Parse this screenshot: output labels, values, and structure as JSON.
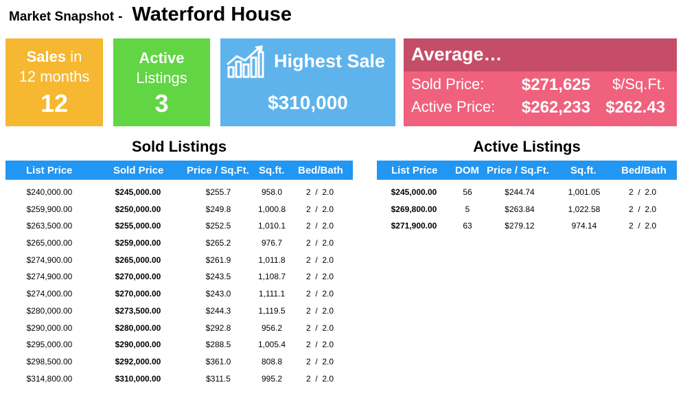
{
  "header": {
    "label": "Market Snapshot",
    "separator": "-",
    "property": "Waterford House"
  },
  "cards": {
    "sales": {
      "word": "Sales",
      "suffix": "in",
      "sub": "12 months",
      "value": "12"
    },
    "active": {
      "word": "Active",
      "sub": "Listings",
      "value": "3"
    },
    "highest": {
      "title": "Highest Sale",
      "value": "$310,000",
      "icon": "chart-growth-icon"
    },
    "average": {
      "title": "Average…",
      "sold_label": "Sold Price:",
      "sold_value": "$271,625",
      "unit_label": "$/Sq.Ft.",
      "active_label": "Active Price:",
      "active_value": "$262,233",
      "active_ppsf": "$262.43"
    }
  },
  "colors": {
    "sales": "#f6b731",
    "active": "#62d544",
    "highest": "#5fb3ec",
    "average": "#f0617d",
    "average_header": "#c54d68",
    "table_header": "#2196f3"
  },
  "sold": {
    "title": "Sold Listings",
    "headers": [
      "List Price",
      "Sold Price",
      "Price / Sq.Ft.",
      "Sq.ft.",
      "Bed/Bath"
    ],
    "rows": [
      [
        "$240,000.00",
        "$245,000.00",
        "$255.7",
        "958.0",
        "2  /  2.0"
      ],
      [
        "$259,900.00",
        "$250,000.00",
        "$249.8",
        "1,000.8",
        "2  /  2.0"
      ],
      [
        "$263,500.00",
        "$255,000.00",
        "$252.5",
        "1,010.1",
        "2  /  2.0"
      ],
      [
        "$265,000.00",
        "$259,000.00",
        "$265.2",
        "976.7",
        "2  /  2.0"
      ],
      [
        "$274,900.00",
        "$265,000.00",
        "$261.9",
        "1,011.8",
        "2  /  2.0"
      ],
      [
        "$274,900.00",
        "$270,000.00",
        "$243.5",
        "1,108.7",
        "2  /  2.0"
      ],
      [
        "$274,000.00",
        "$270,000.00",
        "$243.0",
        "1,111.1",
        "2  /  2.0"
      ],
      [
        "$280,000.00",
        "$273,500.00",
        "$244.3",
        "1,119.5",
        "2  /  2.0"
      ],
      [
        "$290,000.00",
        "$280,000.00",
        "$292.8",
        "956.2",
        "2  /  2.0"
      ],
      [
        "$295,000.00",
        "$290,000.00",
        "$288.5",
        "1,005.4",
        "2  /  2.0"
      ],
      [
        "$298,500.00",
        "$292,000.00",
        "$361.0",
        "808.8",
        "2  /  2.0"
      ],
      [
        "$314,800.00",
        "$310,000.00",
        "$311.5",
        "995.2",
        "2  /  2.0"
      ]
    ]
  },
  "active": {
    "title": "Active Listings",
    "headers": [
      "List Price",
      "DOM",
      "Price / Sq.Ft.",
      "Sq.ft.",
      "Bed/Bath"
    ],
    "rows": [
      [
        "$245,000.00",
        "56",
        "$244.74",
        "1,001.05",
        "2  /  2.0"
      ],
      [
        "$269,800.00",
        "5",
        "$263.84",
        "1,022.58",
        "2  /  2.0"
      ],
      [
        "$271,900.00",
        "63",
        "$279.12",
        "974.14",
        "2  /  2.0"
      ]
    ]
  }
}
